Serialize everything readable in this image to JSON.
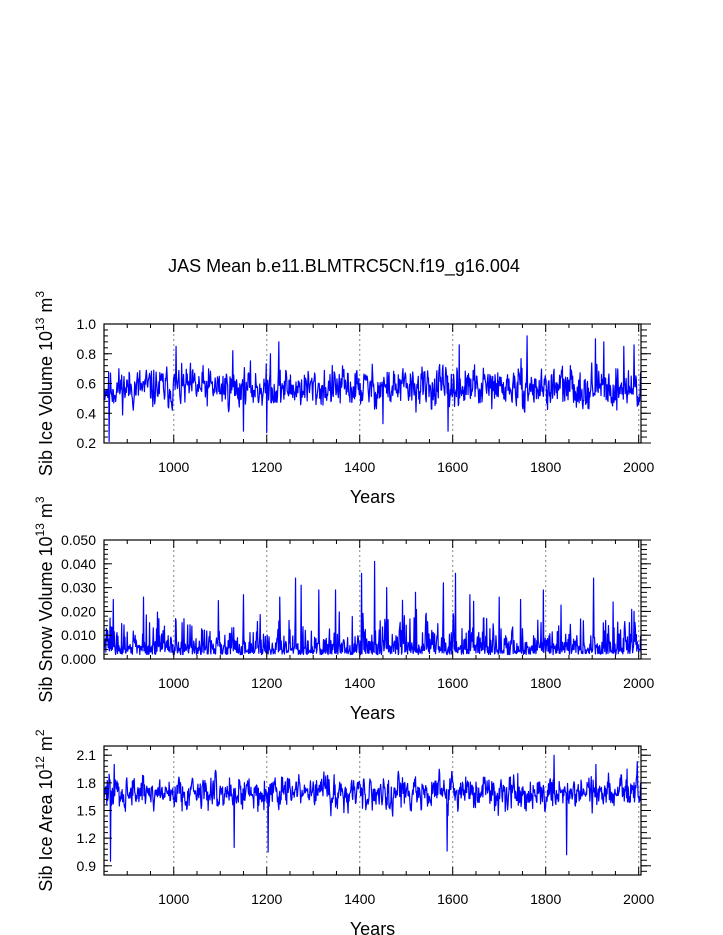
{
  "title": "JAS Mean b.e11.BLMTRC5CN.f19_g16.004",
  "colors": {
    "line": "#0000ff",
    "axis": "#000000",
    "grid": "#999999"
  },
  "chart_data": [
    {
      "type": "line",
      "ylabel_main": "Sib Ice Volume 10",
      "ylabel_exp": "13",
      "ylabel_unit": " m",
      "ylabel_unit_exp": "3",
      "xlabel": "Years",
      "xlim": [
        850,
        2005
      ],
      "ylim": [
        0.2,
        1.0
      ],
      "ytick_values": [
        0.2,
        0.4,
        0.6,
        0.8,
        1.0
      ],
      "ytick_labels": [
        "0.2",
        "0.4",
        "0.6",
        "0.8",
        "1.0"
      ],
      "xticks": [
        1000,
        1200,
        1400,
        1600,
        1800,
        2000
      ],
      "xtick_labels": [
        "1000",
        "1200",
        "1400",
        "1600",
        "1800",
        "2000"
      ],
      "grid_x": [
        1000,
        1200,
        1400,
        1600,
        1800,
        2000
      ],
      "series_gen": {
        "years": [
          850,
          2005
        ],
        "mean": 0.57,
        "amp": 0.095,
        "min": 0.21,
        "max": 0.92,
        "seed": 11,
        "skew": 0
      },
      "anchors": [
        [
          853,
          0.55
        ],
        [
          861,
          0.21
        ],
        [
          1005,
          0.85
        ],
        [
          1127,
          0.82
        ],
        [
          1150,
          0.28
        ],
        [
          1200,
          0.27
        ],
        [
          1208,
          0.8
        ],
        [
          1226,
          0.88
        ],
        [
          1450,
          0.33
        ],
        [
          1590,
          0.28
        ],
        [
          1614,
          0.86
        ],
        [
          1760,
          0.92
        ],
        [
          1907,
          0.9
        ],
        [
          1925,
          0.88
        ],
        [
          1968,
          0.85
        ],
        [
          1990,
          0.86
        ],
        [
          2002,
          0.48
        ]
      ]
    },
    {
      "type": "line",
      "ylabel_main": "Sib Snow Volume 10",
      "ylabel_exp": "13",
      "ylabel_unit": " m",
      "ylabel_unit_exp": "3",
      "xlabel": "Years",
      "xlim": [
        850,
        2005
      ],
      "ylim": [
        0.0,
        0.05
      ],
      "ytick_values": [
        0.0,
        0.01,
        0.02,
        0.03,
        0.04,
        0.05
      ],
      "ytick_labels": [
        "0.000",
        "0.010",
        "0.020",
        "0.030",
        "0.040",
        "0.050"
      ],
      "xticks": [
        1000,
        1200,
        1400,
        1600,
        1800,
        2000
      ],
      "xtick_labels": [
        "1000",
        "1200",
        "1400",
        "1600",
        "1800",
        "2000"
      ],
      "grid_x": [
        1000,
        1200,
        1400,
        1600,
        1800,
        2000
      ],
      "series_gen": {
        "years": [
          850,
          2005
        ],
        "mean": 0.006,
        "amp": 0.004,
        "min": 0.0002,
        "max": 0.041,
        "seed": 29,
        "skew": 1
      },
      "anchors": [
        [
          870,
          0.025
        ],
        [
          935,
          0.026
        ],
        [
          1150,
          0.027
        ],
        [
          1228,
          0.026
        ],
        [
          1262,
          0.034
        ],
        [
          1274,
          0.031
        ],
        [
          1312,
          0.029
        ],
        [
          1348,
          0.029
        ],
        [
          1404,
          0.036
        ],
        [
          1432,
          0.041
        ],
        [
          1458,
          0.03
        ],
        [
          1520,
          0.028
        ],
        [
          1580,
          0.032
        ],
        [
          1606,
          0.036
        ],
        [
          1637,
          0.027
        ],
        [
          1700,
          0.026
        ],
        [
          1746,
          0.025
        ],
        [
          1795,
          0.029
        ],
        [
          1903,
          0.034
        ],
        [
          1990,
          0.02
        ]
      ]
    },
    {
      "type": "line",
      "ylabel_main": "Sib Ice Area 10",
      "ylabel_exp": "12",
      "ylabel_unit": " m",
      "ylabel_unit_exp": "2",
      "xlabel": "Years",
      "xlim": [
        850,
        2005
      ],
      "ylim": [
        0.8,
        2.2
      ],
      "ytick_values": [
        0.9,
        1.2,
        1.5,
        1.8,
        2.1
      ],
      "ytick_labels": [
        "0.9",
        "1.2",
        "1.5",
        "1.8",
        "2.1"
      ],
      "xticks": [
        1000,
        1200,
        1400,
        1600,
        1800,
        2000
      ],
      "xtick_labels": [
        "1000",
        "1200",
        "1400",
        "1600",
        "1800",
        "2000"
      ],
      "grid_x": [
        1000,
        1200,
        1400,
        1600,
        1800,
        2000
      ],
      "series_gen": {
        "years": [
          850,
          2005
        ],
        "mean": 1.7,
        "amp": 0.13,
        "min": 0.95,
        "max": 2.1,
        "seed": 47,
        "skew": 0
      },
      "anchors": [
        [
          864,
          0.95
        ],
        [
          872,
          2.0
        ],
        [
          1130,
          1.1
        ],
        [
          1203,
          1.05
        ],
        [
          1588,
          1.06
        ],
        [
          1740,
          1.9
        ],
        [
          1818,
          2.1
        ],
        [
          1845,
          1.02
        ],
        [
          1908,
          2.0
        ],
        [
          1975,
          1.95
        ],
        [
          1997,
          2.03
        ]
      ]
    }
  ]
}
